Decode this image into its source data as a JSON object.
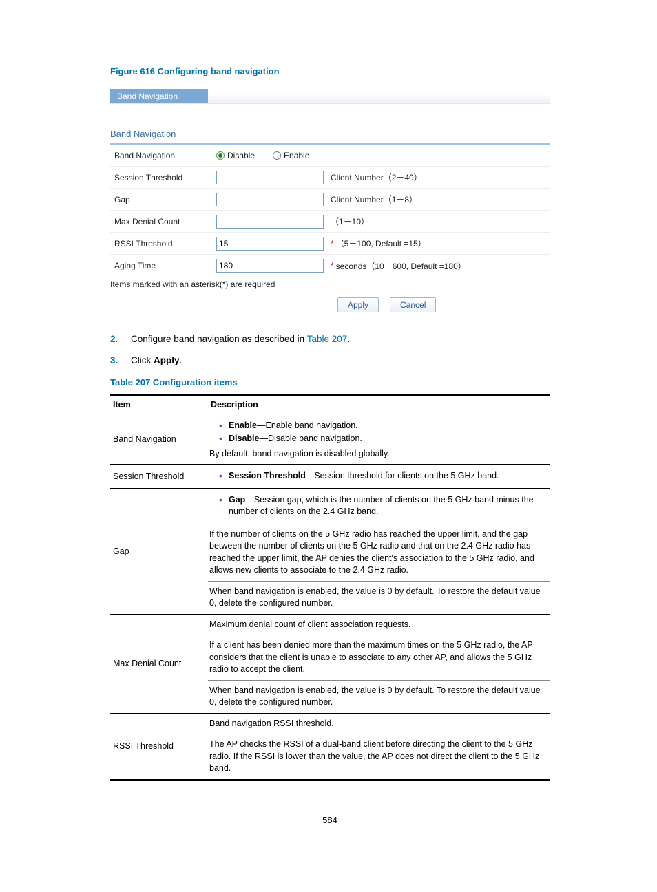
{
  "figure_caption": "Figure 616 Configuring band navigation",
  "panel": {
    "tab_label": "Band Navigation",
    "section_title": "Band Navigation",
    "rows": {
      "band_nav": {
        "label": "Band Navigation",
        "opt_disable": "Disable",
        "opt_enable": "Enable",
        "selected": "disable"
      },
      "session_threshold": {
        "label": "Session Threshold",
        "value": "",
        "hint": "Client Number（2－40）"
      },
      "gap": {
        "label": "Gap",
        "value": "",
        "hint": "Client Number（1－8）"
      },
      "max_denial": {
        "label": "Max Denial Count",
        "value": "",
        "hint": "（1－10）"
      },
      "rssi": {
        "label": "RSSI Threshold",
        "value": "15",
        "req": "*",
        "hint": "（5－100, Default =15）"
      },
      "aging": {
        "label": "Aging Time",
        "value": "180",
        "req": "*",
        "hint": "seconds（10－600, Default =180）"
      }
    },
    "required_note": "Items marked with an asterisk(*) are required",
    "apply_label": "Apply",
    "cancel_label": "Cancel"
  },
  "steps": {
    "s2": {
      "num": "2.",
      "pre": "Configure band navigation as described in ",
      "link": "Table 207",
      "post": "."
    },
    "s3": {
      "num": "3.",
      "pre": "Click ",
      "bold": "Apply",
      "post": "."
    }
  },
  "table_caption": "Table 207 Configuration items",
  "desc_table": {
    "header_item": "Item",
    "header_desc": "Description",
    "rows": [
      {
        "item": "Band Navigation",
        "blocks": [
          {
            "bullets": [
              {
                "b": "Enable",
                "t": "—Enable band navigation."
              },
              {
                "b": "Disable",
                "t": "—Disable band navigation."
              }
            ],
            "tail": "By default, band navigation is disabled globally."
          }
        ]
      },
      {
        "item": "Session Threshold",
        "blocks": [
          {
            "bullets": [
              {
                "b": "Session Threshold",
                "t": "—Session threshold for clients on the 5 GHz band."
              }
            ]
          }
        ]
      },
      {
        "item": "Gap",
        "blocks": [
          {
            "bullets": [
              {
                "b": "Gap",
                "t": "—Session gap, which is the number of clients on the 5 GHz band minus the number of clients on the 2.4 GHz band."
              }
            ]
          },
          {
            "text": "If the number of clients on the 5 GHz radio has reached the upper limit, and the gap between the number of clients on the 5 GHz radio and that on the 2.4 GHz radio has reached the upper limit, the AP denies the client's association to the 5 GHz radio, and allows new clients to associate to the 2.4 GHz radio."
          },
          {
            "text": "When band navigation is enabled, the value is 0 by default. To restore the default value 0, delete the configured number."
          }
        ]
      },
      {
        "item": "Max Denial Count",
        "blocks": [
          {
            "text": "Maximum denial count of client association requests."
          },
          {
            "text": "If a client has been denied more than the maximum times on the 5 GHz radio, the AP considers that the client is unable to associate to any other AP, and allows the 5 GHz radio to accept the client."
          },
          {
            "text": "When band navigation is enabled, the value is 0 by default. To restore the default value 0, delete the configured number."
          }
        ]
      },
      {
        "item": "RSSI Threshold",
        "blocks": [
          {
            "text": "Band navigation RSSI threshold."
          },
          {
            "text": "The AP checks the RSSI of a dual-band client before directing the client to the 5 GHz radio. If the RSSI is lower than the value, the AP does not direct the client to the 5 GHz band."
          }
        ]
      }
    ]
  },
  "page_number": "584"
}
